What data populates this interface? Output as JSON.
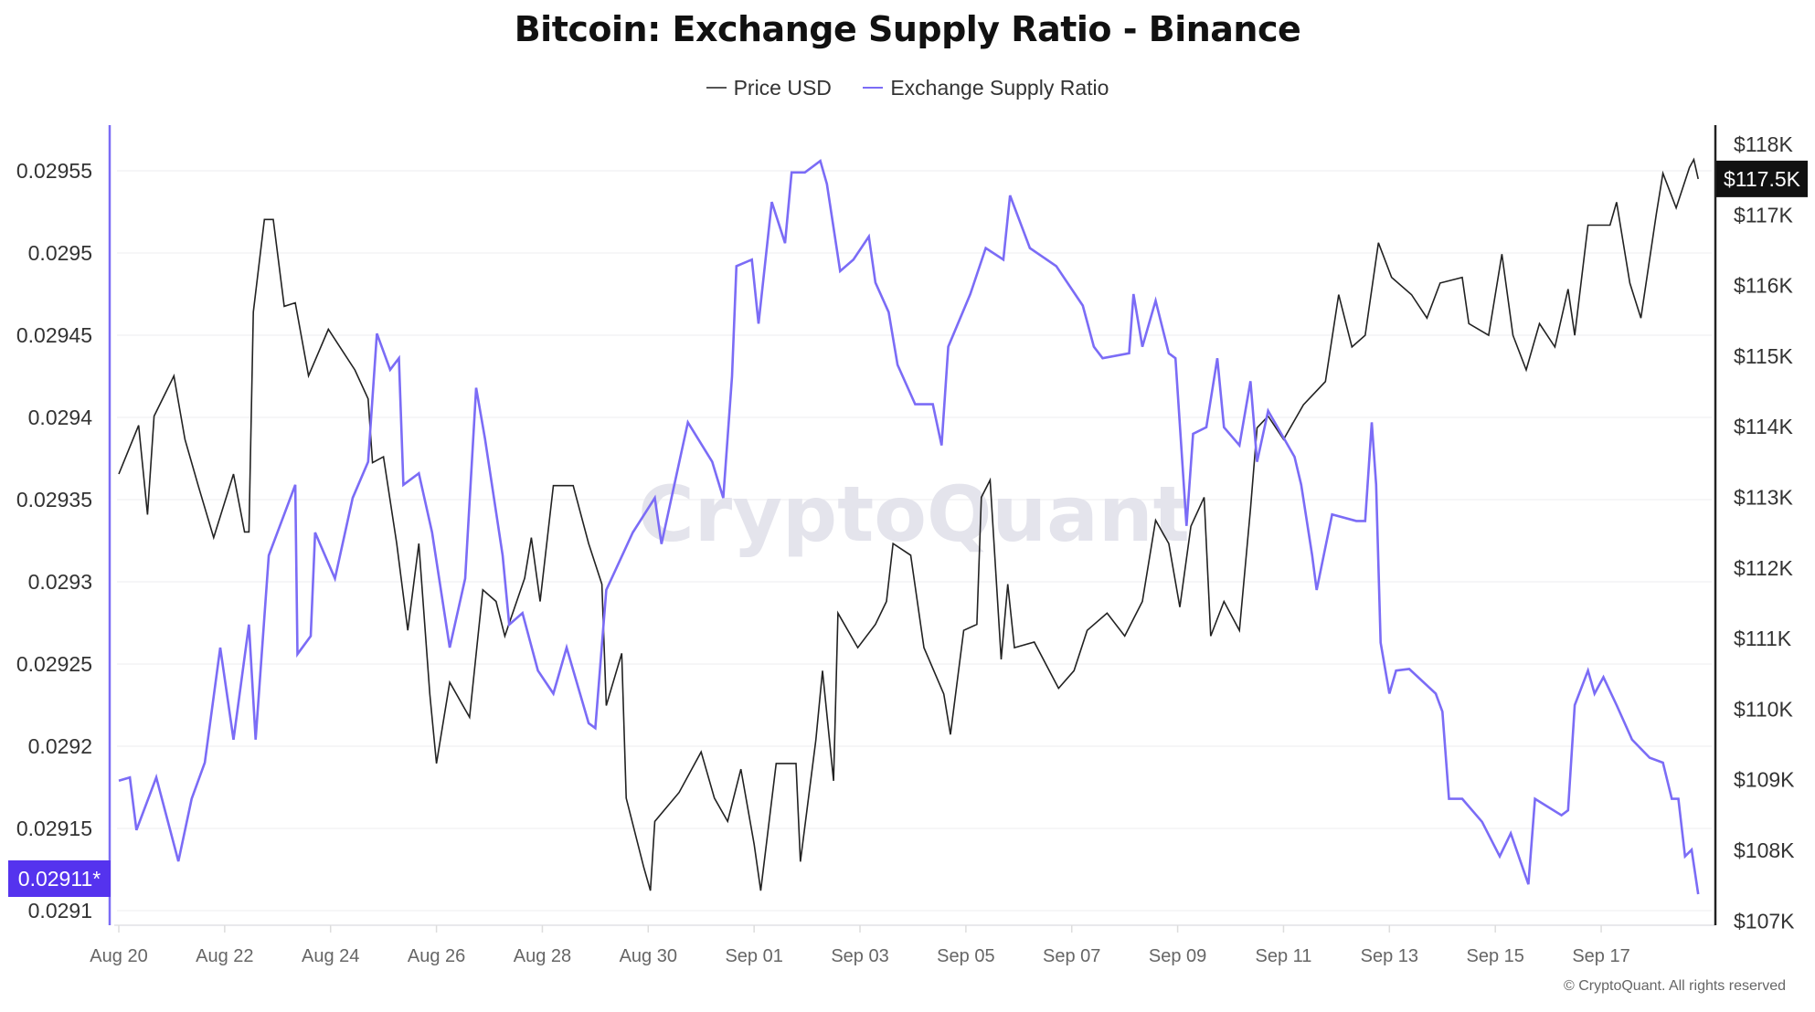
{
  "chart_data": {
    "type": "line",
    "title": "Bitcoin: Exchange Supply Ratio - Binance",
    "legend_position": "top",
    "grid": true,
    "watermark": "CryptoQuant",
    "copyright": "© CryptoQuant. All rights reserved",
    "x_ticks": [
      "Aug 20",
      "Aug 22",
      "Aug 24",
      "Aug 26",
      "Aug 28",
      "Aug 30",
      "Sep 01",
      "Sep 03",
      "Sep 05",
      "Sep 07",
      "Sep 09",
      "Sep 11",
      "Sep 13",
      "Sep 15",
      "Sep 17"
    ],
    "y_left": {
      "ticks": [
        "0.0291",
        "0.02915",
        "0.0292",
        "0.02925",
        "0.0293",
        "0.02935",
        "0.0294",
        "0.02945",
        "0.0295",
        "0.02955"
      ],
      "range": [
        0.02909,
        0.02957
      ],
      "current_label": "0.02911*"
    },
    "y_right": {
      "ticks": [
        "$107K",
        "$108K",
        "$109K",
        "$110K",
        "$111K",
        "$112K",
        "$113K",
        "$114K",
        "$115K",
        "$116K",
        "$117K",
        "$118K"
      ],
      "range": [
        107000,
        118300
      ],
      "current_label": "$117.5K"
    },
    "colors": {
      "price": "#222222",
      "ratio": "#7b6cf6",
      "ratio_badge": "#5533ee",
      "price_badge": "#111111"
    },
    "series": [
      {
        "name": "Price USD",
        "axis": "right",
        "points": [
          [
            "08-20 00:00",
            113330
          ],
          [
            "08-20 09:00",
            114020
          ],
          [
            "08-20 13:00",
            112755
          ],
          [
            "08-20 16:00",
            114150
          ],
          [
            "08-21 01:00",
            114720
          ],
          [
            "08-21 06:00",
            113820
          ],
          [
            "08-21 12:00",
            113165
          ],
          [
            "08-21 19:00",
            112430
          ],
          [
            "08-22 04:00",
            113330
          ],
          [
            "08-22 09:00",
            112510
          ],
          [
            "08-22 11:00",
            112510
          ],
          [
            "08-22 13:00",
            115625
          ],
          [
            "08-22 18:00",
            116935
          ],
          [
            "08-22 22:00",
            116935
          ],
          [
            "08-23 03:00",
            115705
          ],
          [
            "08-23 08:00",
            115755
          ],
          [
            "08-23 14:00",
            114720
          ],
          [
            "08-23 23:00",
            115380
          ],
          [
            "08-24 11:00",
            114805
          ],
          [
            "08-24 17:00",
            114395
          ],
          [
            "08-24 19:00",
            113490
          ],
          [
            "08-25 00:00",
            113575
          ],
          [
            "08-25 06:00",
            112345
          ],
          [
            "08-25 11:00",
            111115
          ],
          [
            "08-25 16:00",
            112345
          ],
          [
            "08-25 21:00",
            110215
          ],
          [
            "08-26 00:00",
            109230
          ],
          [
            "08-26 06:00",
            110380
          ],
          [
            "08-26 15:00",
            109885
          ],
          [
            "08-26 21:00",
            111690
          ],
          [
            "08-27 03:00",
            111525
          ],
          [
            "08-27 07:00",
            111035
          ],
          [
            "08-27 16:00",
            111855
          ],
          [
            "08-27 19:00",
            112430
          ],
          [
            "08-27 23:00",
            111525
          ],
          [
            "08-28 05:00",
            113165
          ],
          [
            "08-28 14:00",
            113165
          ],
          [
            "08-28 21:00",
            112345
          ],
          [
            "08-29 03:00",
            111770
          ],
          [
            "08-29 05:00",
            110050
          ],
          [
            "08-29 12:00",
            110790
          ],
          [
            "08-29 14:00",
            108740
          ],
          [
            "08-29 22:00",
            107755
          ],
          [
            "08-30 01:00",
            107430
          ],
          [
            "08-30 03:00",
            108410
          ],
          [
            "08-30 14:00",
            108820
          ],
          [
            "08-31 00:00",
            109395
          ],
          [
            "08-31 06:00",
            108740
          ],
          [
            "08-31 12:00",
            108410
          ],
          [
            "08-31 18:00",
            109150
          ],
          [
            "09-01 00:00",
            108085
          ],
          [
            "09-01 03:00",
            107430
          ],
          [
            "09-01 10:00",
            109230
          ],
          [
            "09-01 19:00",
            109230
          ],
          [
            "09-01 21:00",
            107840
          ],
          [
            "09-02 04:00",
            109560
          ],
          [
            "09-02 07:00",
            110545
          ],
          [
            "09-02 12:00",
            108985
          ],
          [
            "09-02 14:00",
            111360
          ],
          [
            "09-02 23:00",
            110870
          ],
          [
            "09-03 07:00",
            111200
          ],
          [
            "09-03 12:00",
            111525
          ],
          [
            "09-03 15:00",
            112345
          ],
          [
            "09-03 23:00",
            112180
          ],
          [
            "09-04 05:00",
            110870
          ],
          [
            "09-04 14:00",
            110215
          ],
          [
            "09-04 17:00",
            109640
          ],
          [
            "09-04 23:00",
            111115
          ],
          [
            "09-05 05:00",
            111200
          ],
          [
            "09-05 07:00",
            113000
          ],
          [
            "09-05 11:00",
            113245
          ],
          [
            "09-05 16:00",
            110705
          ],
          [
            "09-05 19:00",
            111770
          ],
          [
            "09-05 22:00",
            110870
          ],
          [
            "09-06 07:00",
            110950
          ],
          [
            "09-06 18:00",
            110295
          ],
          [
            "09-07 01:00",
            110545
          ],
          [
            "09-07 07:00",
            111115
          ],
          [
            "09-07 16:00",
            111360
          ],
          [
            "09-08 00:00",
            111035
          ],
          [
            "09-08 08:00",
            111525
          ],
          [
            "09-08 14:00",
            112675
          ],
          [
            "09-08 20:00",
            112345
          ],
          [
            "09-09 01:00",
            111445
          ],
          [
            "09-09 06:00",
            112590
          ],
          [
            "09-09 12:00",
            113000
          ],
          [
            "09-09 15:00",
            111035
          ],
          [
            "09-09 21:00",
            111525
          ],
          [
            "09-10 04:00",
            111115
          ],
          [
            "09-10 09:00",
            112835
          ],
          [
            "09-10 12:00",
            113985
          ],
          [
            "09-10 17:00",
            114150
          ],
          [
            "09-11 00:00",
            113820
          ],
          [
            "09-11 09:00",
            114310
          ],
          [
            "09-11 19:00",
            114640
          ],
          [
            "09-12 01:00",
            115870
          ],
          [
            "09-12 07:00",
            115130
          ],
          [
            "09-12 13:00",
            115295
          ],
          [
            "09-12 19:00",
            116605
          ],
          [
            "09-13 01:00",
            116115
          ],
          [
            "09-13 10:00",
            115870
          ],
          [
            "09-13 17:00",
            115540
          ],
          [
            "09-13 23:00",
            116035
          ],
          [
            "09-14 09:00",
            116115
          ],
          [
            "09-14 12:00",
            115460
          ],
          [
            "09-14 21:00",
            115295
          ],
          [
            "09-15 03:00",
            116445
          ],
          [
            "09-15 08:00",
            115295
          ],
          [
            "09-15 14:00",
            114805
          ],
          [
            "09-15 20:00",
            115460
          ],
          [
            "09-16 03:00",
            115130
          ],
          [
            "09-16 09:00",
            115950
          ],
          [
            "09-16 12:00",
            115295
          ],
          [
            "09-16 18:00",
            116855
          ],
          [
            "09-17 04:00",
            116855
          ],
          [
            "09-17 07:00",
            117180
          ],
          [
            "09-17 13:00",
            116035
          ],
          [
            "09-17 18:00",
            115540
          ],
          [
            "09-18 01:00",
            117015
          ],
          [
            "09-18 04:00",
            117590
          ],
          [
            "09-18 10:00",
            117100
          ],
          [
            "09-18 16:00",
            117670
          ],
          [
            "09-18 18:00",
            117785
          ],
          [
            "09-18 20:00",
            117510
          ]
        ]
      },
      {
        "name": "Exchange Supply Ratio",
        "axis": "left",
        "points": [
          [
            "08-20 00:00",
            0.029179
          ],
          [
            "08-20 05:00",
            0.029181
          ],
          [
            "08-20 08:00",
            0.029149
          ],
          [
            "08-20 17:00",
            0.029181
          ],
          [
            "08-21 03:00",
            0.02913
          ],
          [
            "08-21 09:00",
            0.029168
          ],
          [
            "08-21 15:00",
            0.02919
          ],
          [
            "08-21 22:00",
            0.02926
          ],
          [
            "08-22 04:00",
            0.029204
          ],
          [
            "08-22 11:00",
            0.029274
          ],
          [
            "08-22 14:00",
            0.029204
          ],
          [
            "08-22 20:00",
            0.029316
          ],
          [
            "08-23 08:00",
            0.029359
          ],
          [
            "08-23 09:00",
            0.029256
          ],
          [
            "08-23 15:00",
            0.029267
          ],
          [
            "08-23 17:00",
            0.02933
          ],
          [
            "08-24 02:00",
            0.029302
          ],
          [
            "08-24 10:00",
            0.029351
          ],
          [
            "08-24 17:00",
            0.029373
          ],
          [
            "08-24 21:00",
            0.029451
          ],
          [
            "08-25 03:00",
            0.029429
          ],
          [
            "08-25 07:00",
            0.029436
          ],
          [
            "08-25 09:00",
            0.029359
          ],
          [
            "08-25 16:00",
            0.029366
          ],
          [
            "08-25 22:00",
            0.02933
          ],
          [
            "08-26 06:00",
            0.02926
          ],
          [
            "08-26 13:00",
            0.029302
          ],
          [
            "08-26 18:00",
            0.029418
          ],
          [
            "08-26 22:00",
            0.029387
          ],
          [
            "08-27 06:00",
            0.029316
          ],
          [
            "08-27 09:00",
            0.029274
          ],
          [
            "08-27 15:00",
            0.029281
          ],
          [
            "08-27 22:00",
            0.029246
          ],
          [
            "08-28 05:00",
            0.029232
          ],
          [
            "08-28 11:00",
            0.02926
          ],
          [
            "08-28 21:00",
            0.029214
          ],
          [
            "08-29 00:00",
            0.029211
          ],
          [
            "08-29 05:00",
            0.029295
          ],
          [
            "08-29 17:00",
            0.02933
          ],
          [
            "08-30 03:00",
            0.029351
          ],
          [
            "08-30 06:00",
            0.029323
          ],
          [
            "08-30 18:00",
            0.029397
          ],
          [
            "08-31 05:00",
            0.029373
          ],
          [
            "08-31 10:00",
            0.029351
          ],
          [
            "08-31 14:00",
            0.029425
          ],
          [
            "08-31 16:00",
            0.029492
          ],
          [
            "08-31 23:00",
            0.029496
          ],
          [
            "09-01 02:00",
            0.029457
          ],
          [
            "09-01 08:00",
            0.029531
          ],
          [
            "09-01 14:00",
            0.029506
          ],
          [
            "09-01 17:00",
            0.029549
          ],
          [
            "09-01 23:00",
            0.029549
          ],
          [
            "09-02 06:00",
            0.029556
          ],
          [
            "09-02 09:00",
            0.029542
          ],
          [
            "09-02 15:00",
            0.029489
          ],
          [
            "09-02 21:00",
            0.029496
          ],
          [
            "09-03 04:00",
            0.02951
          ],
          [
            "09-03 07:00",
            0.029482
          ],
          [
            "09-03 13:00",
            0.029464
          ],
          [
            "09-03 17:00",
            0.029432
          ],
          [
            "09-04 01:00",
            0.029408
          ],
          [
            "09-04 09:00",
            0.029408
          ],
          [
            "09-04 13:00",
            0.029383
          ],
          [
            "09-04 16:00",
            0.029443
          ],
          [
            "09-05 02:00",
            0.029475
          ],
          [
            "09-05 09:00",
            0.029503
          ],
          [
            "09-05 17:00",
            0.029496
          ],
          [
            "09-05 20:00",
            0.029535
          ],
          [
            "09-06 05:00",
            0.029503
          ],
          [
            "09-06 17:00",
            0.029492
          ],
          [
            "09-07 05:00",
            0.029468
          ],
          [
            "09-07 10:00",
            0.029443
          ],
          [
            "09-07 14:00",
            0.029436
          ],
          [
            "09-08 02:00",
            0.029439
          ],
          [
            "09-08 04:00",
            0.029475
          ],
          [
            "09-08 08:00",
            0.029443
          ],
          [
            "09-08 14:00",
            0.029471
          ],
          [
            "09-08 20:00",
            0.029439
          ],
          [
            "09-08 23:00",
            0.029436
          ],
          [
            "09-09 04:00",
            0.029334
          ],
          [
            "09-09 07:00",
            0.02939
          ],
          [
            "09-09 13:00",
            0.029394
          ],
          [
            "09-09 18:00",
            0.029436
          ],
          [
            "09-09 21:00",
            0.029394
          ],
          [
            "09-10 04:00",
            0.029383
          ],
          [
            "09-10 09:00",
            0.029422
          ],
          [
            "09-10 12:00",
            0.029373
          ],
          [
            "09-10 17:00",
            0.029404
          ],
          [
            "09-11 05:00",
            0.029376
          ],
          [
            "09-11 08:00",
            0.029359
          ],
          [
            "09-11 13:00",
            0.029316
          ],
          [
            "09-11 15:00",
            0.029295
          ],
          [
            "09-11 22:00",
            0.029341
          ],
          [
            "09-12 09:00",
            0.029337
          ],
          [
            "09-12 13:00",
            0.029337
          ],
          [
            "09-12 16:00",
            0.029397
          ],
          [
            "09-12 18:00",
            0.029359
          ],
          [
            "09-12 20:00",
            0.029263
          ],
          [
            "09-13 00:00",
            0.029232
          ],
          [
            "09-13 03:00",
            0.029246
          ],
          [
            "09-13 09:00",
            0.029247
          ],
          [
            "09-13 21:00",
            0.029232
          ],
          [
            "09-14 00:00",
            0.029221
          ],
          [
            "09-14 03:00",
            0.029168
          ],
          [
            "09-14 09:00",
            0.029168
          ],
          [
            "09-14 18:00",
            0.029154
          ],
          [
            "09-15 02:00",
            0.029133
          ],
          [
            "09-15 07:00",
            0.029147
          ],
          [
            "09-15 15:00",
            0.029116
          ],
          [
            "09-15 18:00",
            0.029168
          ],
          [
            "09-16 06:00",
            0.029158
          ],
          [
            "09-16 09:00",
            0.029161
          ],
          [
            "09-16 12:00",
            0.029225
          ],
          [
            "09-16 18:00",
            0.029246
          ],
          [
            "09-16 21:00",
            0.029232
          ],
          [
            "09-17 01:00",
            0.029242
          ],
          [
            "09-17 07:00",
            0.029225
          ],
          [
            "09-17 14:00",
            0.029204
          ],
          [
            "09-17 22:00",
            0.029193
          ],
          [
            "09-18 04:00",
            0.02919
          ],
          [
            "09-18 08:00",
            0.029168
          ],
          [
            "09-18 11:00",
            0.029168
          ],
          [
            "09-18 14:00",
            0.029133
          ],
          [
            "09-18 17:00",
            0.029137
          ],
          [
            "09-18 20:00",
            0.02911
          ]
        ]
      }
    ]
  }
}
